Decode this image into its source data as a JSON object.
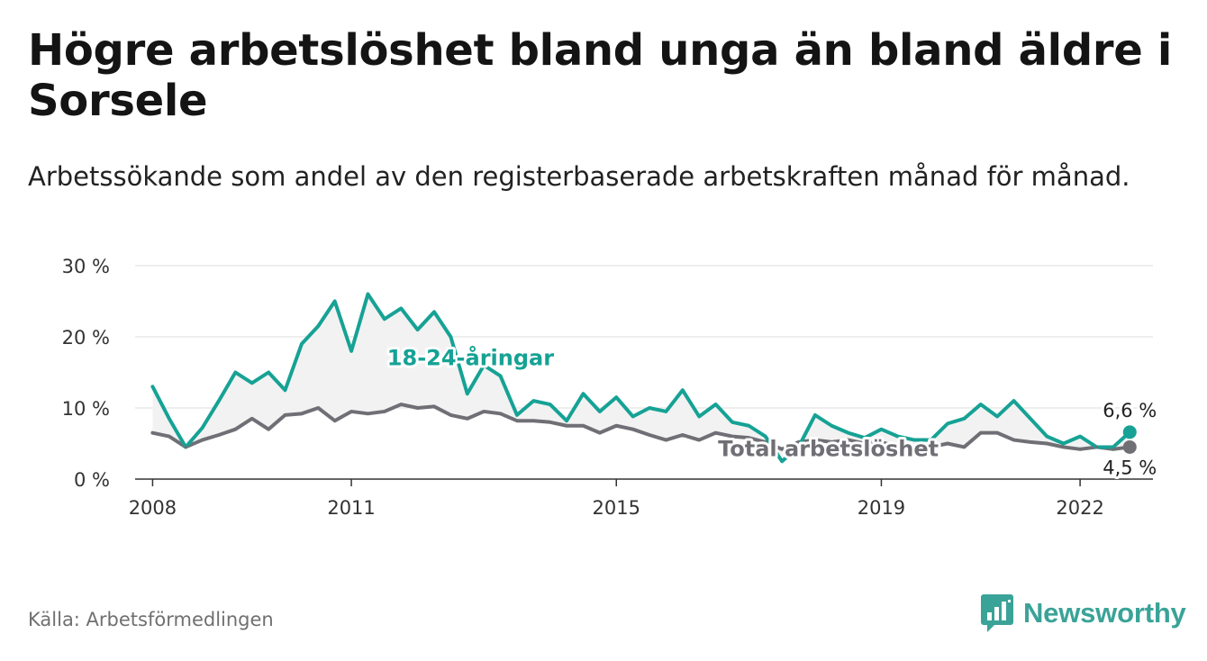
{
  "title": "Högre arbetslöshet bland unga än bland äldre i Sorsele",
  "subtitle": "Arbetssökande som andel av den registerbaserade arbetskraften månad för månad.",
  "source": "Källa: Arbetsförmedlingen",
  "brand": {
    "name": "Newsworthy",
    "logo_icon": "newsworthy-chart-icon"
  },
  "colors": {
    "youth": "#16a295",
    "total": "#6f6f75",
    "band": "#f2f2f2",
    "grid": "#dcdcdc"
  },
  "chart_data": {
    "type": "line",
    "title": "Högre arbetslöshet bland unga än bland äldre i Sorsele",
    "ylabel": "",
    "xlabel": "",
    "ylim": [
      0,
      30
    ],
    "y_ticks": [
      0,
      10,
      20,
      30
    ],
    "y_tick_labels": [
      "0 %",
      "10 %",
      "20 %",
      "30 %"
    ],
    "x_ticks": [
      2008,
      2011,
      2015,
      2019,
      2022
    ],
    "x_tick_labels": [
      "2008",
      "2011",
      "2015",
      "2019",
      "2022"
    ],
    "grid": "horizontal",
    "series": [
      {
        "name": "18-24-åringar",
        "last_label": "6,6 %",
        "x": [
          "2008-01",
          "2008-04",
          "2008-07",
          "2008-10",
          "2009-01",
          "2009-04",
          "2009-07",
          "2009-10",
          "2010-01",
          "2010-04",
          "2010-07",
          "2010-10",
          "2011-01",
          "2011-04",
          "2011-07",
          "2011-10",
          "2012-01",
          "2012-04",
          "2012-07",
          "2012-10",
          "2013-01",
          "2013-04",
          "2013-07",
          "2013-10",
          "2014-01",
          "2014-04",
          "2014-07",
          "2014-10",
          "2015-01",
          "2015-04",
          "2015-07",
          "2015-10",
          "2016-01",
          "2016-04",
          "2016-07",
          "2016-10",
          "2017-01",
          "2017-04",
          "2017-07",
          "2017-10",
          "2018-01",
          "2018-04",
          "2018-07",
          "2018-10",
          "2019-01",
          "2019-04",
          "2019-07",
          "2019-10",
          "2020-01",
          "2020-04",
          "2020-07",
          "2020-10",
          "2021-01",
          "2021-04",
          "2021-07",
          "2021-10",
          "2022-01",
          "2022-04",
          "2022-07",
          "2022-10"
        ],
        "values": [
          13,
          8.5,
          4.5,
          7.2,
          11,
          15,
          13.5,
          15,
          12.5,
          19,
          21.5,
          25,
          18,
          26,
          22.5,
          24,
          21,
          23.5,
          20,
          12,
          16,
          14.5,
          9,
          11,
          10.5,
          8.2,
          12,
          9.5,
          11.5,
          8.8,
          10,
          9.5,
          12.5,
          8.8,
          10.5,
          8,
          7.5,
          6,
          2.5,
          4.5,
          9,
          7.5,
          6.5,
          5.8,
          7,
          6,
          5.5,
          5.5,
          7.8,
          8.5,
          10.5,
          8.8,
          11,
          8.5,
          6,
          5,
          6,
          4.5,
          4.5,
          6.6
        ]
      },
      {
        "name": "Total arbetslöshet",
        "last_label": "4,5 %",
        "x": [
          "2008-01",
          "2008-04",
          "2008-07",
          "2008-10",
          "2009-01",
          "2009-04",
          "2009-07",
          "2009-10",
          "2010-01",
          "2010-04",
          "2010-07",
          "2010-10",
          "2011-01",
          "2011-04",
          "2011-07",
          "2011-10",
          "2012-01",
          "2012-04",
          "2012-07",
          "2012-10",
          "2013-01",
          "2013-04",
          "2013-07",
          "2013-10",
          "2014-01",
          "2014-04",
          "2014-07",
          "2014-10",
          "2015-01",
          "2015-04",
          "2015-07",
          "2015-10",
          "2016-01",
          "2016-04",
          "2016-07",
          "2016-10",
          "2017-01",
          "2017-04",
          "2017-07",
          "2017-10",
          "2018-01",
          "2018-04",
          "2018-07",
          "2018-10",
          "2019-01",
          "2019-04",
          "2019-07",
          "2019-10",
          "2020-01",
          "2020-04",
          "2020-07",
          "2020-10",
          "2021-01",
          "2021-04",
          "2021-07",
          "2021-10",
          "2022-01",
          "2022-04",
          "2022-07",
          "2022-10"
        ],
        "values": [
          6.5,
          6,
          4.5,
          5.5,
          6.2,
          7,
          8.5,
          7,
          9,
          9.2,
          10,
          8.2,
          9.5,
          9.2,
          9.5,
          10.5,
          10,
          10.2,
          9,
          8.5,
          9.5,
          9.2,
          8.2,
          8.2,
          8,
          7.5,
          7.5,
          6.5,
          7.5,
          7,
          6.2,
          5.5,
          6.2,
          5.5,
          6.5,
          6,
          5.8,
          5.2,
          4.2,
          5.2,
          5.5,
          5.2,
          5.5,
          5,
          5.2,
          4.5,
          4.5,
          4.5,
          5,
          4.5,
          6.5,
          6.5,
          5.5,
          5.2,
          5,
          4.5,
          4.2,
          4.5,
          4.2,
          4.5
        ]
      }
    ],
    "annotations": [
      "18-24-åringar",
      "Total arbetslöshet",
      "6,6 %",
      "4,5 %"
    ]
  }
}
